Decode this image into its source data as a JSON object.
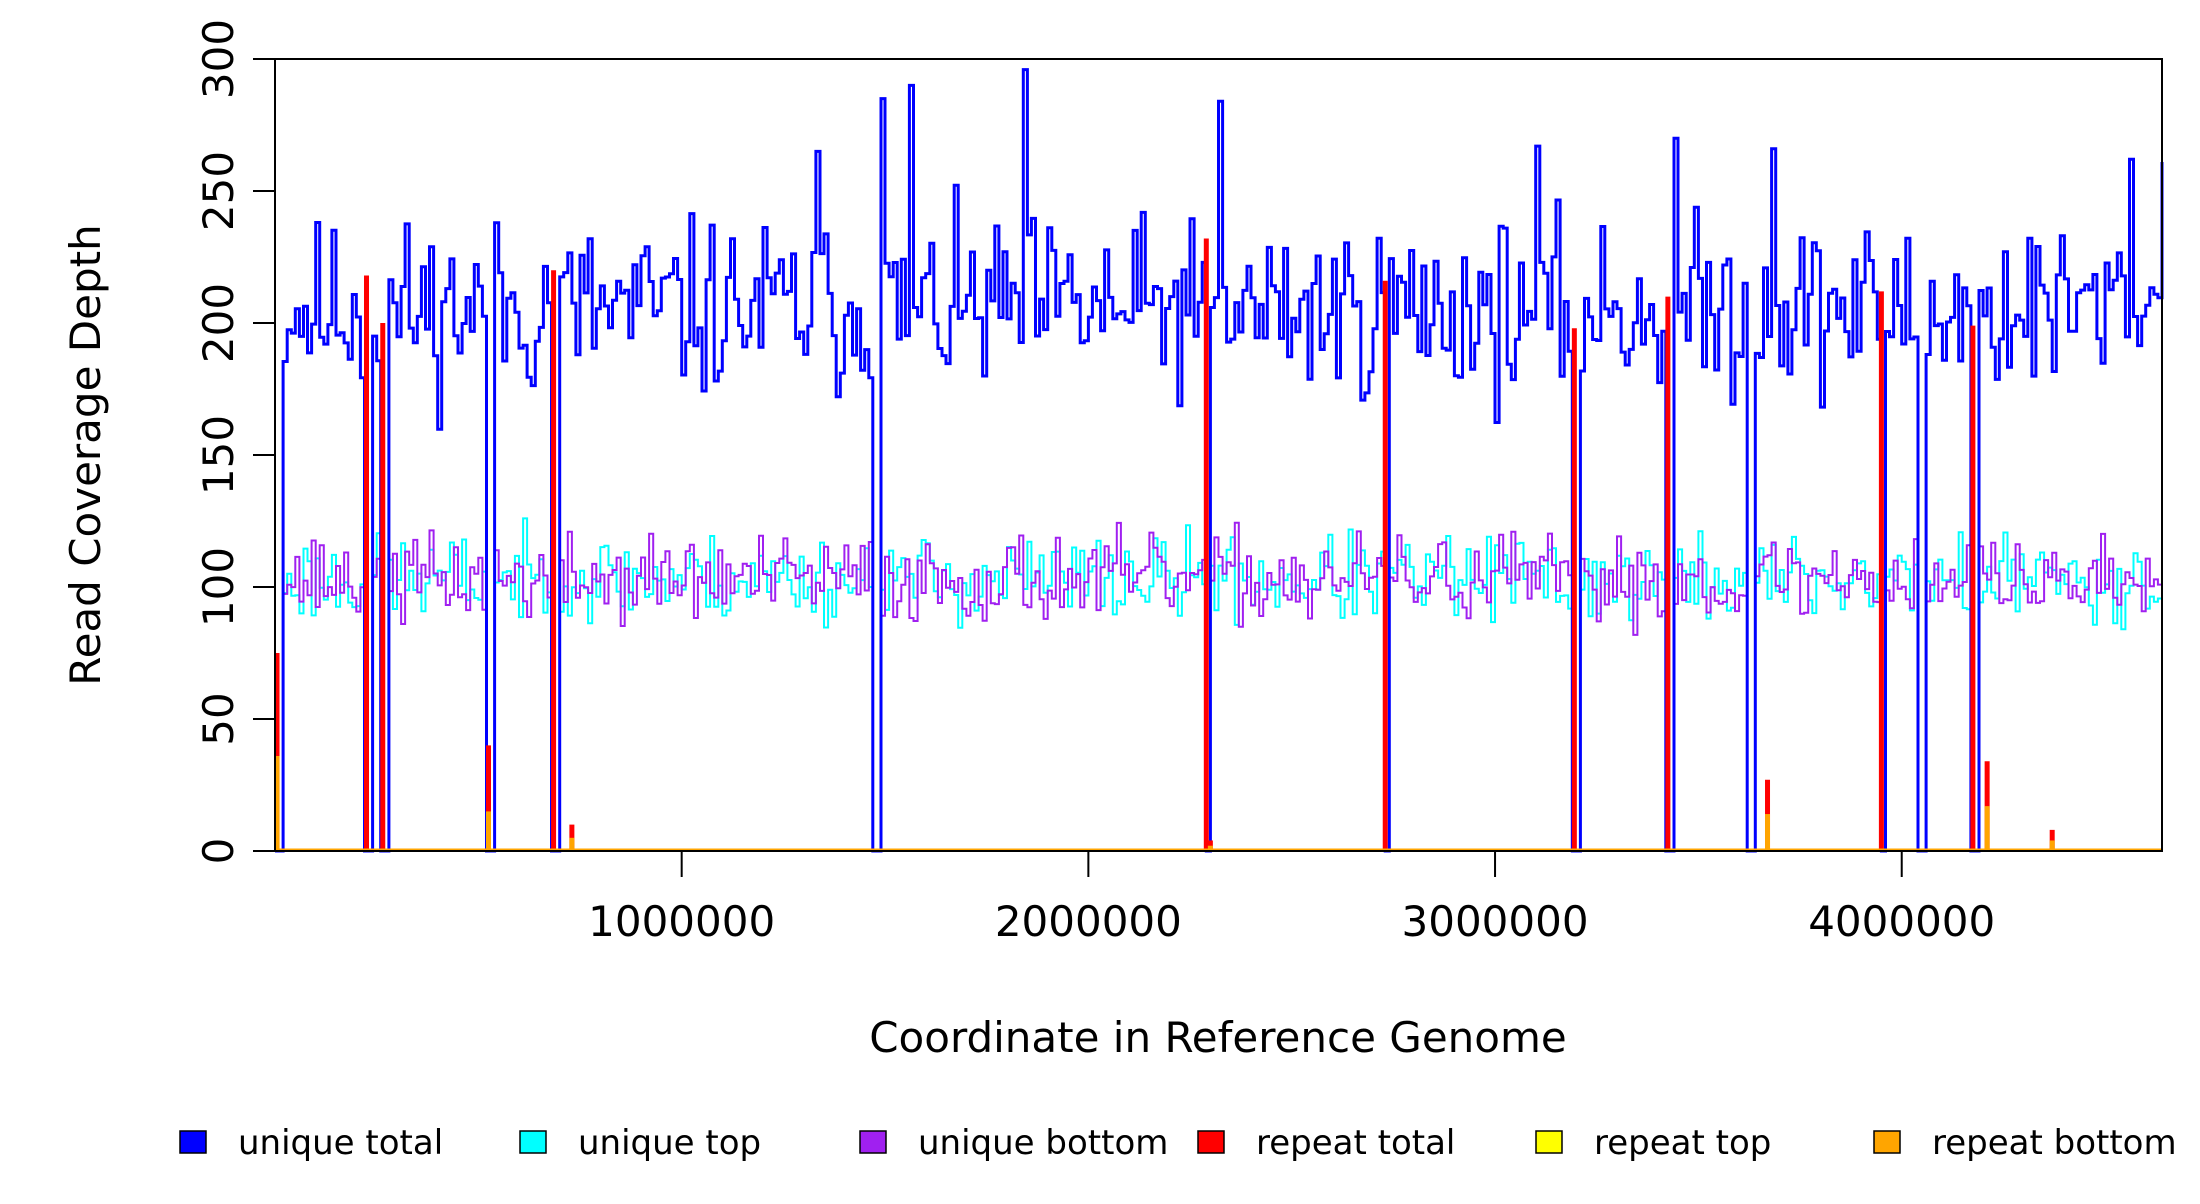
{
  "chart_data": {
    "type": "line",
    "title": "",
    "xlabel": "Coordinate in Reference Genome",
    "ylabel": "Read Coverage Depth",
    "xlim": [
      0,
      4640000
    ],
    "ylim": [
      0,
      300
    ],
    "x_ticks": [
      1000000,
      2000000,
      3000000,
      4000000
    ],
    "x_tick_labels": [
      "1000000",
      "2000000",
      "3000000",
      "4000000"
    ],
    "y_ticks": [
      0,
      50,
      100,
      150,
      200,
      250,
      300
    ],
    "y_tick_labels": [
      "0",
      "50",
      "100",
      "150",
      "200",
      "250",
      "300"
    ],
    "bin_width": 10000,
    "legend_position": "bottom",
    "series": [
      {
        "name": "unique total",
        "color": "#0000FF",
        "baseline": 205,
        "noise": 22,
        "seed": 11
      },
      {
        "name": "unique top",
        "color": "#00FFFF",
        "baseline": 103,
        "noise": 11,
        "seed": 23
      },
      {
        "name": "unique bottom",
        "color": "#A020F0",
        "baseline": 103,
        "noise": 11,
        "seed": 37
      },
      {
        "name": "repeat total",
        "color": "#FF0000",
        "baseline": 0,
        "noise": 0,
        "seed": 0
      },
      {
        "name": "repeat top",
        "color": "#FFFF00",
        "baseline": 0,
        "noise": 0,
        "seed": 0
      },
      {
        "name": "repeat bottom",
        "color": "#FFA500",
        "baseline": 0,
        "noise": 0,
        "seed": 0
      }
    ],
    "coverage_gaps_x": [
      5000,
      225000,
      265000,
      525000,
      685000,
      1475000,
      2290000,
      2730000,
      3195000,
      3425000,
      3625000,
      3950000,
      4045000,
      4175000
    ],
    "unique_total_peaks": [
      {
        "x": 1840000,
        "y": 296
      },
      {
        "x": 1560000,
        "y": 290
      },
      {
        "x": 1490000,
        "y": 285
      },
      {
        "x": 2315000,
        "y": 284
      },
      {
        "x": 3440000,
        "y": 270
      },
      {
        "x": 3100000,
        "y": 267
      },
      {
        "x": 3680000,
        "y": 266
      },
      {
        "x": 1330000,
        "y": 265
      },
      {
        "x": 4560000,
        "y": 262
      },
      {
        "x": 4640000,
        "y": 261
      }
    ],
    "repeat_total": [
      {
        "x": 5000,
        "y": 75
      },
      {
        "x": 225000,
        "y": 218
      },
      {
        "x": 265000,
        "y": 200
      },
      {
        "x": 525000,
        "y": 40
      },
      {
        "x": 685000,
        "y": 220
      },
      {
        "x": 730000,
        "y": 10
      },
      {
        "x": 2290000,
        "y": 232
      },
      {
        "x": 2300000,
        "y": 4
      },
      {
        "x": 2730000,
        "y": 216
      },
      {
        "x": 3195000,
        "y": 198
      },
      {
        "x": 3425000,
        "y": 210
      },
      {
        "x": 3670000,
        "y": 27
      },
      {
        "x": 3950000,
        "y": 212
      },
      {
        "x": 4175000,
        "y": 199
      },
      {
        "x": 4210000,
        "y": 34
      },
      {
        "x": 4370000,
        "y": 8
      }
    ],
    "repeat_bottom": [
      {
        "x": 5000,
        "y": 36
      },
      {
        "x": 525000,
        "y": 15
      },
      {
        "x": 730000,
        "y": 5
      },
      {
        "x": 2300000,
        "y": 2
      },
      {
        "x": 3670000,
        "y": 14
      },
      {
        "x": 4210000,
        "y": 17
      },
      {
        "x": 4370000,
        "y": 4
      }
    ]
  }
}
